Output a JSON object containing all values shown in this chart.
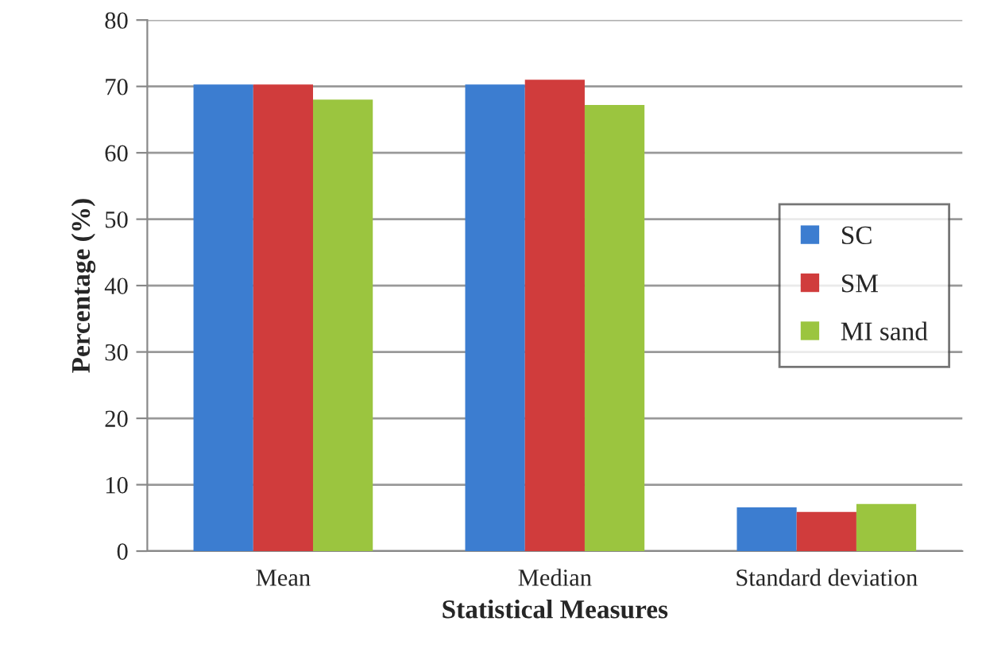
{
  "chart_data": {
    "type": "bar",
    "xlabel": "Statistical Measures",
    "ylabel": "Percentage (%)",
    "categories": [
      "Mean",
      "Median",
      "Standard deviation"
    ],
    "series": [
      {
        "name": "SC",
        "color": "#3c7dd0",
        "values": [
          70.3,
          70.3,
          6.6
        ]
      },
      {
        "name": "SM",
        "color": "#d03c3c",
        "values": [
          70.3,
          71,
          5.9
        ]
      },
      {
        "name": "MI sand",
        "color": "#9bc53f",
        "values": [
          68,
          67.2,
          7.1
        ]
      }
    ],
    "ylim": [
      0,
      80
    ],
    "yticks": [
      0,
      10,
      20,
      30,
      40,
      50,
      60,
      70,
      80
    ],
    "grid": "y",
    "legend": "right"
  }
}
